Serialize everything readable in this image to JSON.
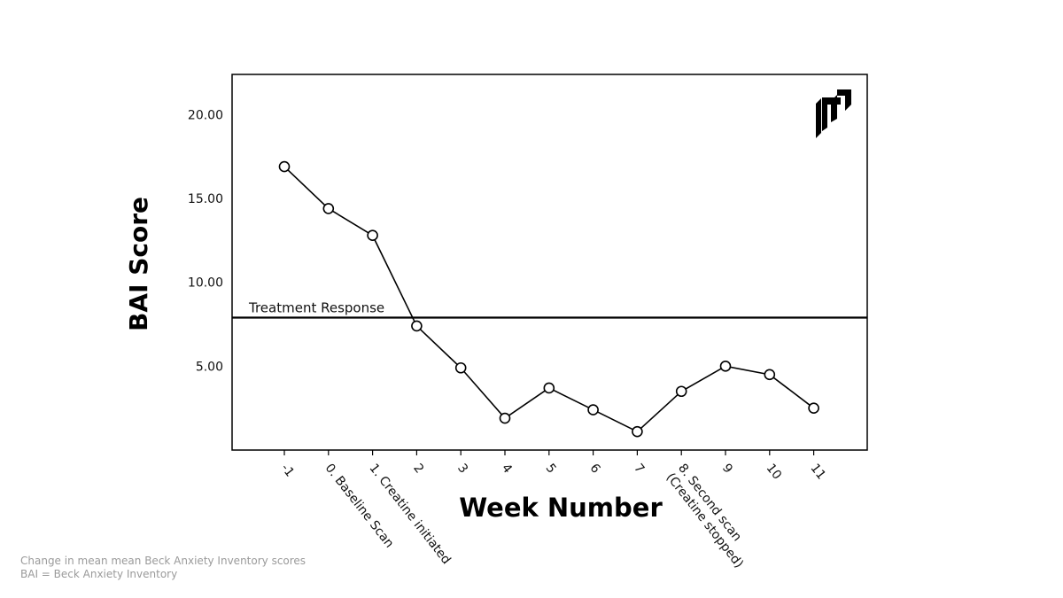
{
  "chart_data": {
    "type": "line",
    "title": "",
    "xlabel": "Week Number",
    "ylabel": "BAI Score",
    "x": [
      [
        "-1"
      ],
      [
        "0. Baseline Scan"
      ],
      [
        "1. Creatine initiated"
      ],
      [
        "2"
      ],
      [
        "3"
      ],
      [
        "4"
      ],
      [
        "5"
      ],
      [
        "6"
      ],
      [
        "7"
      ],
      [
        "8. Second scan",
        "(Creatine stopped)"
      ],
      [
        "9"
      ],
      [
        "10"
      ],
      [
        "11"
      ]
    ],
    "series": [
      {
        "values": [
          16.9,
          14.4,
          12.8,
          7.4,
          4.9,
          1.9,
          3.7,
          2.4,
          1.1,
          3.5,
          5.0,
          4.5,
          2.5
        ]
      }
    ],
    "yticks": [
      "5.00",
      "10.00",
      "15.00",
      "20.00"
    ],
    "ytick_values": [
      5,
      10,
      15,
      20
    ],
    "ylim": [
      0,
      22.4
    ],
    "reference_line": {
      "value": 7.9,
      "label": "Treatment Response"
    },
    "grid": false,
    "legend": "none",
    "colors": {
      "line": "#000000",
      "marker_fill": "#ffffff",
      "footnote": "#9a9a9a"
    }
  },
  "logo": {
    "icon": "brand-logo-icon"
  },
  "footnotes": [
    "Change in mean mean Beck Anxiety Inventory scores",
    "BAI = Beck Anxiety Inventory"
  ]
}
